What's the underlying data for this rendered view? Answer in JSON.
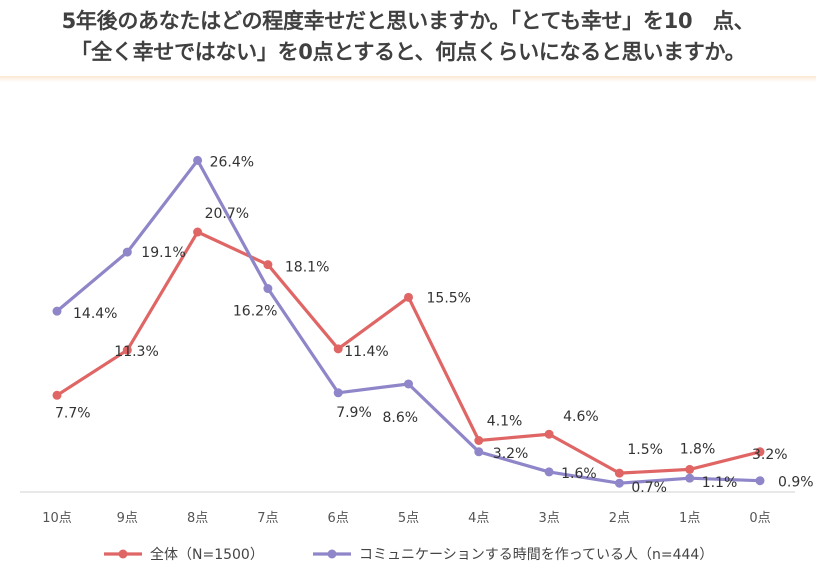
{
  "title": {
    "line1": "5年後のあなたはどの程度幸せだと思いますか。「とても幸せ」を10　点、",
    "line2": "「全く幸せではない」を0点とすると、何点くらいになると思いますか。"
  },
  "chart_data": {
    "type": "line",
    "title": "5年後のあなたはどの程度幸せだと思いますか。「とても幸せ」を10　点、「全く幸せではない」を0点とすると、何点くらいになると思いますか。",
    "xlabel": "",
    "ylabel": "",
    "grid": false,
    "legend_position": "bottom",
    "ylim": [
      0,
      30
    ],
    "categories": [
      "10点",
      "9点",
      "8点",
      "7点",
      "6点",
      "5点",
      "4点",
      "3点",
      "2点",
      "1点",
      "0点"
    ],
    "series": [
      {
        "name": "全体（N=1500）",
        "color": "#e06666",
        "values": [
          7.7,
          11.3,
          20.7,
          18.1,
          11.4,
          15.5,
          4.1,
          4.6,
          1.5,
          1.8,
          3.2
        ],
        "labels": [
          "7.7%",
          "11.3%",
          "20.7%",
          "18.1%",
          "11.4%",
          "15.5%",
          "4.1%",
          "4.6%",
          "1.5%",
          "1.8%",
          "3.2%"
        ]
      },
      {
        "name": "コミュニケーションする時間を作っている人（n=444）",
        "color": "#8e86c9",
        "values": [
          14.4,
          19.1,
          26.4,
          16.2,
          7.9,
          8.6,
          3.2,
          1.6,
          0.7,
          1.1,
          0.9
        ],
        "labels": [
          "14.4%",
          "19.1%",
          "26.4%",
          "16.2%",
          "7.9%",
          "8.6%",
          "3.2%",
          "1.6%",
          "0.7%",
          "1.1%",
          "0.9%"
        ]
      }
    ]
  }
}
